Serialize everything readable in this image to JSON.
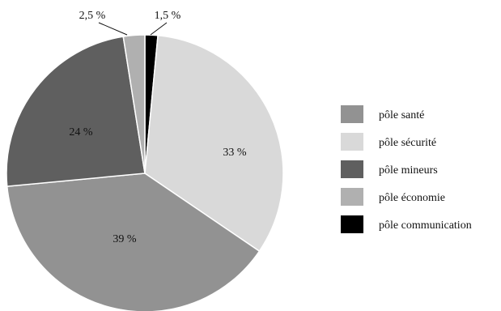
{
  "chart_data": {
    "type": "pie",
    "title": "",
    "slices": [
      {
        "label": "pôle communication",
        "value": 1.5,
        "pct_label": "1,5 %",
        "color": "#000000"
      },
      {
        "label": "pôle sécurité",
        "value": 33,
        "pct_label": "33 %",
        "color": "#d9d9d9"
      },
      {
        "label": "pôle santé",
        "value": 39,
        "pct_label": "39 %",
        "color": "#929292"
      },
      {
        "label": "pôle mineurs",
        "value": 24,
        "pct_label": "24 %",
        "color": "#5f5f5f"
      },
      {
        "label": "pôle économie",
        "value": 2.5,
        "pct_label": "2,5 %",
        "color": "#b0b0b0"
      }
    ],
    "start_angle": "12 o'clock",
    "direction": "clockwise",
    "legend": {
      "placement": "right",
      "entries": [
        {
          "label": "pôle santé",
          "color": "#929292"
        },
        {
          "label": "pôle sécurité",
          "color": "#d9d9d9"
        },
        {
          "label": "pôle mineurs",
          "color": "#5f5f5f"
        },
        {
          "label": "pôle économie",
          "color": "#b0b0b0"
        },
        {
          "label": "pôle communication",
          "color": "#000000"
        }
      ]
    }
  }
}
